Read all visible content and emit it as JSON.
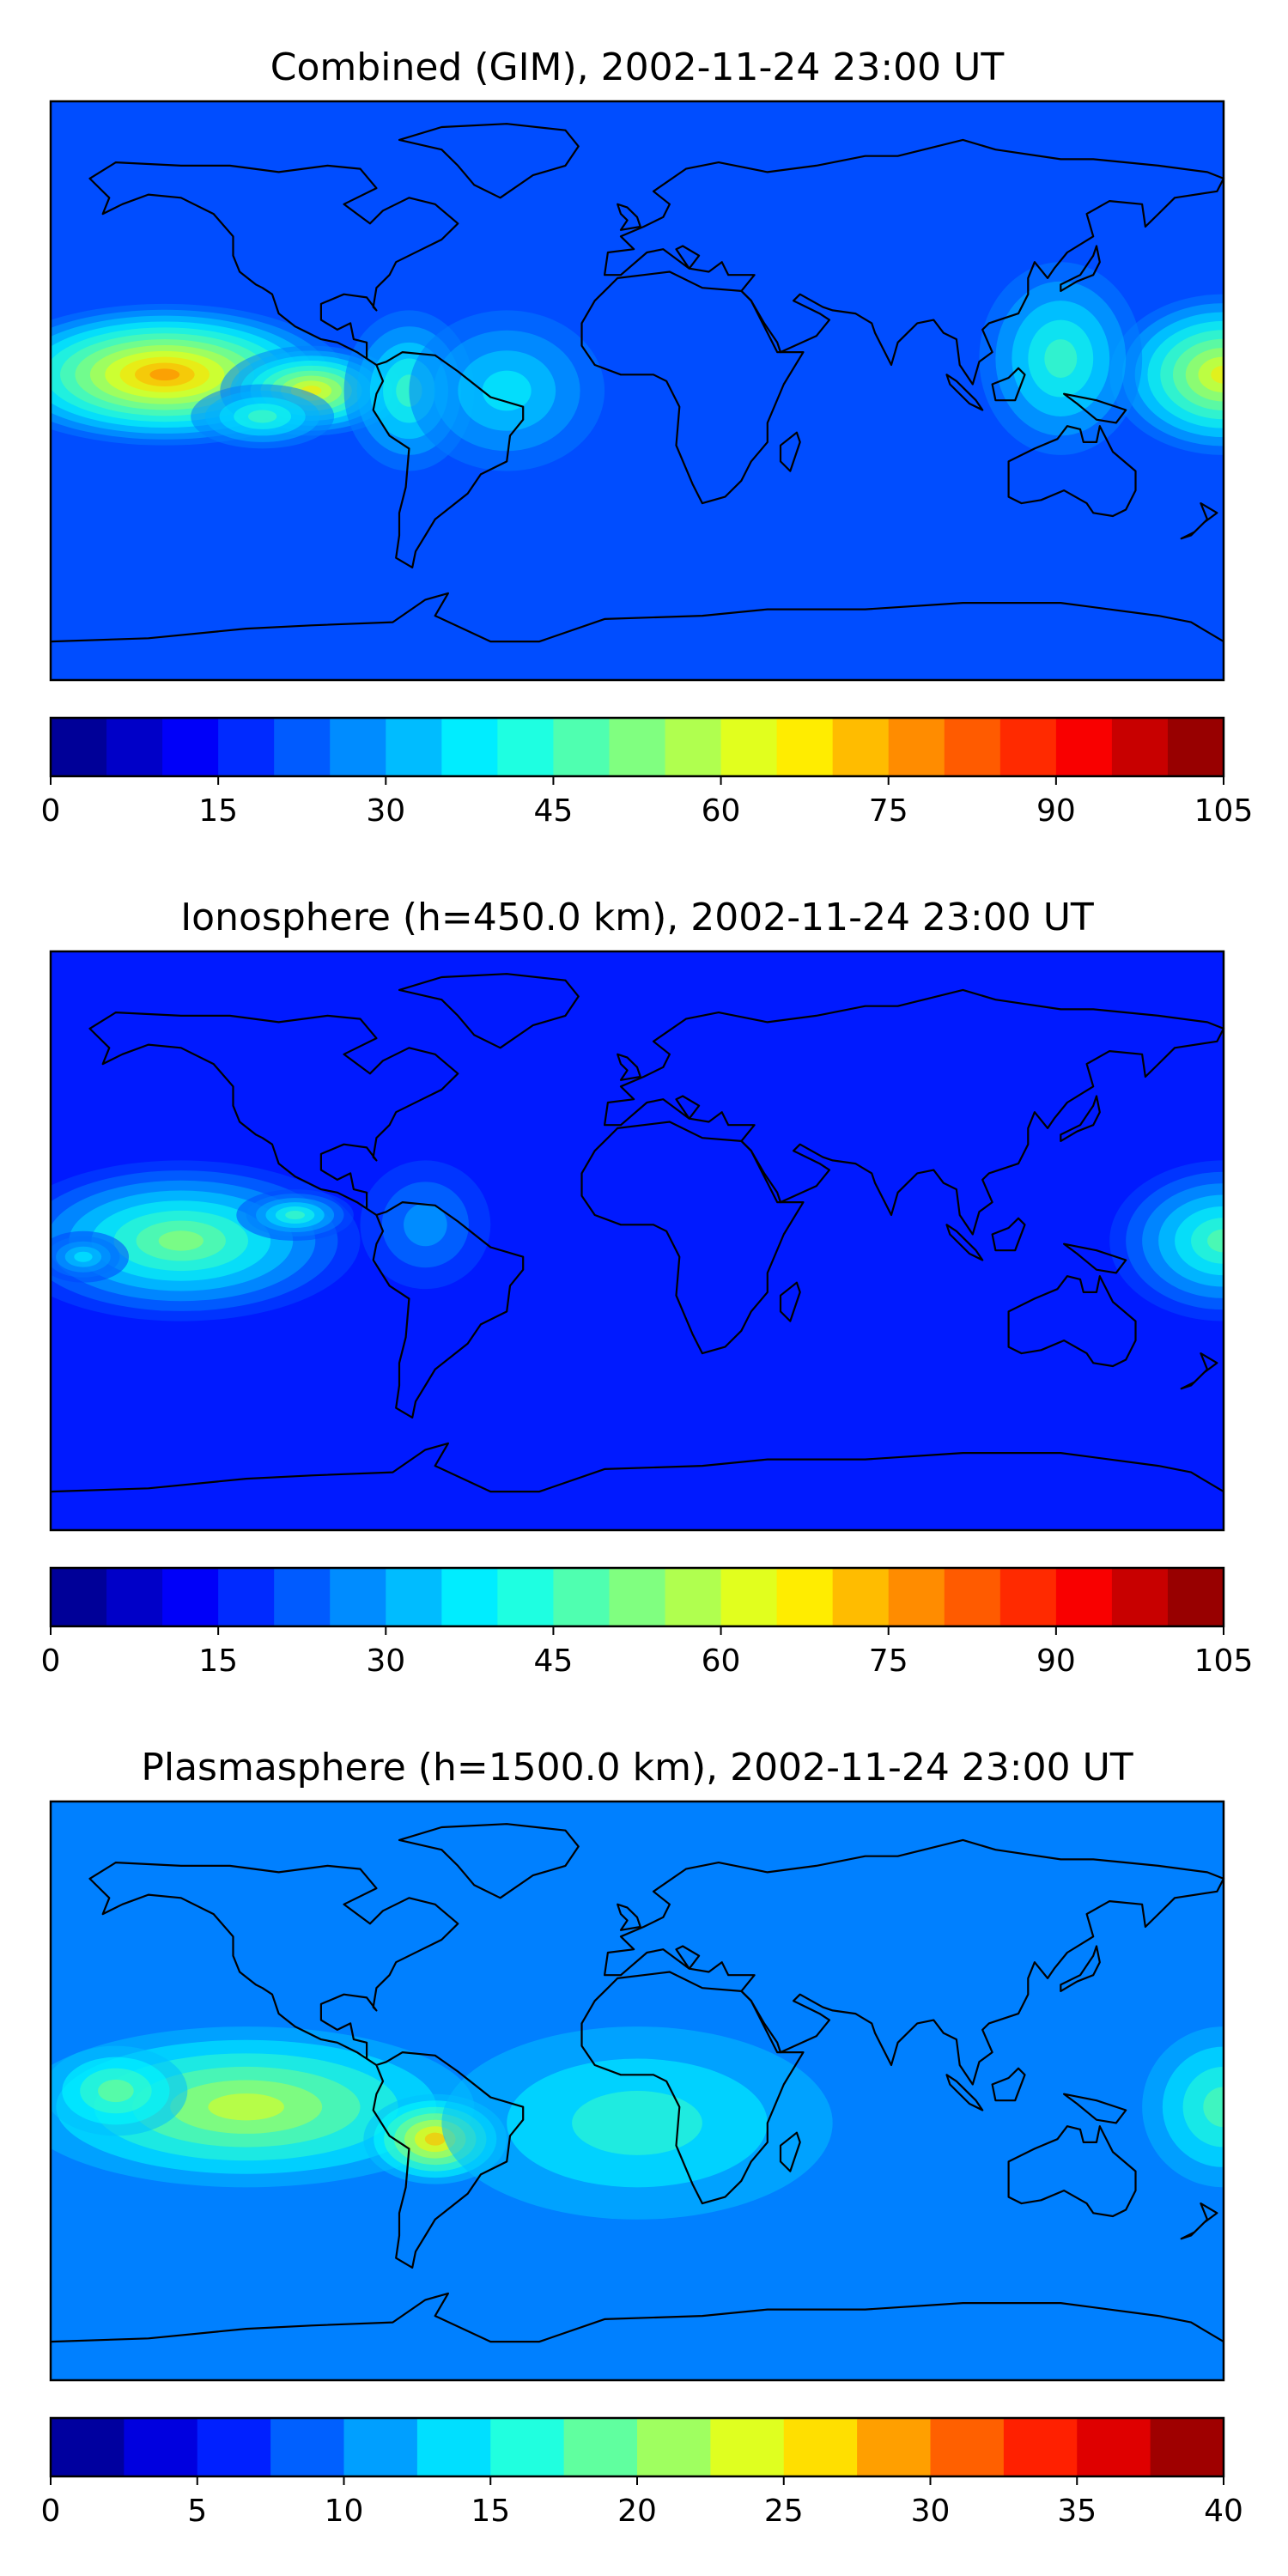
{
  "panels": [
    {
      "title": "Combined (GIM), 2002-11-24 23:00 UT",
      "colorbar": {
        "min": 0,
        "max": 105,
        "n_levels": 21,
        "ticks": [
          "0",
          "15",
          "30",
          "45",
          "60",
          "75",
          "90",
          "105"
        ]
      },
      "blobs": [
        {
          "lon": -145,
          "lat": 5,
          "rx": 55,
          "ry": 22,
          "amp": 0.55
        },
        {
          "lon": -100,
          "lat": 0,
          "rx": 28,
          "ry": 14,
          "amp": 0.45
        },
        {
          "lon": -115,
          "lat": -8,
          "rx": 22,
          "ry": 10,
          "amp": 0.25
        },
        {
          "lon": -70,
          "lat": 0,
          "rx": 20,
          "ry": 25,
          "amp": 0.25
        },
        {
          "lon": 180,
          "lat": 5,
          "rx": 35,
          "ry": 25,
          "amp": 0.45
        },
        {
          "lon": 130,
          "lat": 10,
          "rx": 25,
          "ry": 30,
          "amp": 0.25
        },
        {
          "lon": -40,
          "lat": 0,
          "rx": 30,
          "ry": 25,
          "amp": 0.18
        }
      ],
      "base": 0.2
    },
    {
      "title": "Ionosphere  (h=450.0 km), 2002-11-24 23:00 UT",
      "colorbar": {
        "min": 0,
        "max": 105,
        "n_levels": 21,
        "ticks": [
          "0",
          "15",
          "30",
          "45",
          "60",
          "75",
          "90",
          "105"
        ]
      },
      "blobs": [
        {
          "lon": -140,
          "lat": 0,
          "rx": 55,
          "ry": 25,
          "amp": 0.38
        },
        {
          "lon": -105,
          "lat": 8,
          "rx": 18,
          "ry": 8,
          "amp": 0.3
        },
        {
          "lon": -170,
          "lat": -5,
          "rx": 14,
          "ry": 8,
          "amp": 0.22
        },
        {
          "lon": 180,
          "lat": 0,
          "rx": 35,
          "ry": 25,
          "amp": 0.33
        },
        {
          "lon": -65,
          "lat": 5,
          "rx": 20,
          "ry": 20,
          "amp": 0.15
        }
      ],
      "base": 0.15
    },
    {
      "title": "Plasmasphere (h=1500.0 km), 2002-11-24 23:00 UT",
      "colorbar": {
        "min": 0,
        "max": 40,
        "n_levels": 16,
        "ticks": [
          "0",
          "5",
          "10",
          "15",
          "20",
          "25",
          "30",
          "35",
          "40"
        ]
      },
      "blobs": [
        {
          "lon": -120,
          "lat": -5,
          "rx": 70,
          "ry": 25,
          "amp": 0.35
        },
        {
          "lon": -62,
          "lat": -15,
          "rx": 22,
          "ry": 14,
          "amp": 0.45
        },
        {
          "lon": -160,
          "lat": 0,
          "rx": 22,
          "ry": 14,
          "amp": 0.25
        },
        {
          "lon": 0,
          "lat": -10,
          "rx": 60,
          "ry": 30,
          "amp": 0.18
        },
        {
          "lon": 180,
          "lat": -5,
          "rx": 25,
          "ry": 25,
          "amp": 0.22
        }
      ],
      "base": 0.25
    }
  ],
  "coastlines": [
    {
      "name": "north-america",
      "points": [
        [
          -168,
          66
        ],
        [
          -160,
          71
        ],
        [
          -140,
          70
        ],
        [
          -125,
          70
        ],
        [
          -110,
          68
        ],
        [
          -95,
          70
        ],
        [
          -85,
          69
        ],
        [
          -80,
          63
        ],
        [
          -90,
          58
        ],
        [
          -82,
          52
        ],
        [
          -78,
          56
        ],
        [
          -70,
          60
        ],
        [
          -62,
          58
        ],
        [
          -55,
          52
        ],
        [
          -60,
          47
        ],
        [
          -66,
          44
        ],
        [
          -70,
          42
        ],
        [
          -74,
          40
        ],
        [
          -76,
          36
        ],
        [
          -80,
          32
        ],
        [
          -81,
          26
        ],
        [
          -80,
          25
        ],
        [
          -83,
          29
        ],
        [
          -90,
          30
        ],
        [
          -97,
          27
        ],
        [
          -97,
          22
        ],
        [
          -92,
          19
        ],
        [
          -88,
          21
        ],
        [
          -87,
          16
        ],
        [
          -83,
          15
        ],
        [
          -83,
          10
        ],
        [
          -80,
          8
        ],
        [
          -86,
          12
        ],
        [
          -92,
          15
        ],
        [
          -97,
          16
        ],
        [
          -105,
          20
        ],
        [
          -110,
          24
        ],
        [
          -112,
          30
        ],
        [
          -115,
          32
        ],
        [
          -117,
          33
        ],
        [
          -122,
          37
        ],
        [
          -124,
          42
        ],
        [
          -124,
          48
        ],
        [
          -130,
          55
        ],
        [
          -140,
          60
        ],
        [
          -150,
          61
        ],
        [
          -158,
          58
        ],
        [
          -164,
          55
        ],
        [
          -162,
          60
        ],
        [
          -166,
          64
        ],
        [
          -168,
          66
        ]
      ]
    },
    {
      "name": "south-america",
      "points": [
        [
          -80,
          8
        ],
        [
          -77,
          9
        ],
        [
          -72,
          12
        ],
        [
          -62,
          11
        ],
        [
          -55,
          6
        ],
        [
          -50,
          2
        ],
        [
          -45,
          -2
        ],
        [
          -35,
          -5
        ],
        [
          -35,
          -9
        ],
        [
          -39,
          -14
        ],
        [
          -40,
          -22
        ],
        [
          -48,
          -26
        ],
        [
          -52,
          -32
        ],
        [
          -57,
          -36
        ],
        [
          -62,
          -40
        ],
        [
          -65,
          -45
        ],
        [
          -68,
          -50
        ],
        [
          -69,
          -55
        ],
        [
          -74,
          -52
        ],
        [
          -73,
          -45
        ],
        [
          -73,
          -38
        ],
        [
          -71,
          -30
        ],
        [
          -70,
          -18
        ],
        [
          -76,
          -14
        ],
        [
          -81,
          -6
        ],
        [
          -80,
          -1
        ],
        [
          -78,
          3
        ],
        [
          -80,
          8
        ]
      ]
    },
    {
      "name": "greenland",
      "points": [
        [
          -73,
          78
        ],
        [
          -60,
          82
        ],
        [
          -40,
          83
        ],
        [
          -22,
          81
        ],
        [
          -18,
          76
        ],
        [
          -22,
          70
        ],
        [
          -32,
          67
        ],
        [
          -42,
          60
        ],
        [
          -50,
          64
        ],
        [
          -55,
          70
        ],
        [
          -60,
          75
        ],
        [
          -73,
          78
        ]
      ]
    },
    {
      "name": "africa",
      "points": [
        [
          -17,
          21
        ],
        [
          -13,
          28
        ],
        [
          -9,
          32
        ],
        [
          -6,
          35
        ],
        [
          10,
          37
        ],
        [
          20,
          32
        ],
        [
          32,
          31
        ],
        [
          35,
          28
        ],
        [
          43,
          12
        ],
        [
          51,
          12
        ],
        [
          45,
          2
        ],
        [
          40,
          -10
        ],
        [
          40,
          -16
        ],
        [
          35,
          -22
        ],
        [
          32,
          -28
        ],
        [
          27,
          -33
        ],
        [
          20,
          -35
        ],
        [
          17,
          -29
        ],
        [
          12,
          -17
        ],
        [
          13,
          -5
        ],
        [
          9,
          3
        ],
        [
          5,
          5
        ],
        [
          -5,
          5
        ],
        [
          -13,
          8
        ],
        [
          -17,
          14
        ],
        [
          -17,
          21
        ]
      ]
    },
    {
      "name": "madagascar",
      "points": [
        [
          44,
          -17
        ],
        [
          49,
          -13
        ],
        [
          50,
          -16
        ],
        [
          47,
          -25
        ],
        [
          44,
          -22
        ],
        [
          44,
          -17
        ]
      ]
    },
    {
      "name": "eurasia",
      "points": [
        [
          -10,
          36
        ],
        [
          -9,
          43
        ],
        [
          -1,
          44
        ],
        [
          -5,
          48
        ],
        [
          2,
          51
        ],
        [
          8,
          54
        ],
        [
          10,
          58
        ],
        [
          5,
          62
        ],
        [
          15,
          69
        ],
        [
          25,
          71
        ],
        [
          40,
          68
        ],
        [
          55,
          70
        ],
        [
          70,
          73
        ],
        [
          80,
          73
        ],
        [
          100,
          78
        ],
        [
          110,
          75
        ],
        [
          130,
          72
        ],
        [
          140,
          72
        ],
        [
          160,
          70
        ],
        [
          175,
          68
        ],
        [
          180,
          66
        ],
        [
          178,
          62
        ],
        [
          165,
          60
        ],
        [
          160,
          55
        ],
        [
          156,
          51
        ],
        [
          155,
          58
        ],
        [
          145,
          59
        ],
        [
          138,
          55
        ],
        [
          140,
          48
        ],
        [
          132,
          43
        ],
        [
          128,
          38
        ],
        [
          126,
          35
        ],
        [
          122,
          40
        ],
        [
          120,
          35
        ],
        [
          120,
          30
        ],
        [
          117,
          24
        ],
        [
          108,
          21
        ],
        [
          106,
          19
        ],
        [
          109,
          12
        ],
        [
          105,
          9
        ],
        [
          103,
          2
        ],
        [
          99,
          8
        ],
        [
          98,
          16
        ],
        [
          94,
          18
        ],
        [
          91,
          22
        ],
        [
          86,
          21
        ],
        [
          80,
          15
        ],
        [
          78,
          8
        ],
        [
          73,
          18
        ],
        [
          72,
          21
        ],
        [
          67,
          24
        ],
        [
          60,
          25
        ],
        [
          57,
          26
        ],
        [
          50,
          30
        ],
        [
          48,
          28
        ],
        [
          56,
          24
        ],
        [
          59,
          22
        ],
        [
          55,
          17
        ],
        [
          44,
          12
        ],
        [
          43,
          15
        ],
        [
          39,
          21
        ],
        [
          35,
          28
        ],
        [
          32,
          31
        ],
        [
          36,
          36
        ],
        [
          28,
          36
        ],
        [
          26,
          40
        ],
        [
          22,
          37
        ],
        [
          16,
          38
        ],
        [
          19,
          42
        ],
        [
          14,
          45
        ],
        [
          12,
          44
        ],
        [
          16,
          38
        ],
        [
          8,
          44
        ],
        [
          3,
          43
        ],
        [
          -5,
          36
        ],
        [
          -10,
          36
        ]
      ]
    },
    {
      "name": "uk",
      "points": [
        [
          -5,
          50
        ],
        [
          1,
          51
        ],
        [
          0,
          54
        ],
        [
          -3,
          57
        ],
        [
          -6,
          58
        ],
        [
          -5,
          55
        ],
        [
          -3,
          53
        ],
        [
          -5,
          50
        ]
      ]
    },
    {
      "name": "japan",
      "points": [
        [
          130,
          31
        ],
        [
          135,
          34
        ],
        [
          140,
          36
        ],
        [
          142,
          40
        ],
        [
          141,
          45
        ],
        [
          140,
          42
        ],
        [
          136,
          36
        ],
        [
          130,
          33
        ],
        [
          130,
          31
        ]
      ]
    },
    {
      "name": "sumatra",
      "points": [
        [
          95,
          5
        ],
        [
          98,
          3
        ],
        [
          104,
          -3
        ],
        [
          106,
          -6
        ],
        [
          102,
          -4
        ],
        [
          96,
          2
        ],
        [
          95,
          5
        ]
      ]
    },
    {
      "name": "borneo",
      "points": [
        [
          109,
          2
        ],
        [
          114,
          4
        ],
        [
          117,
          7
        ],
        [
          119,
          5
        ],
        [
          116,
          -3
        ],
        [
          110,
          -3
        ],
        [
          109,
          2
        ]
      ]
    },
    {
      "name": "new-guinea",
      "points": [
        [
          131,
          -1
        ],
        [
          141,
          -3
        ],
        [
          150,
          -6
        ],
        [
          147,
          -10
        ],
        [
          141,
          -9
        ],
        [
          135,
          -4
        ],
        [
          131,
          -1
        ]
      ]
    },
    {
      "name": "australia",
      "points": [
        [
          114,
          -22
        ],
        [
          114,
          -33
        ],
        [
          118,
          -35
        ],
        [
          124,
          -34
        ],
        [
          131,
          -31
        ],
        [
          138,
          -35
        ],
        [
          140,
          -38
        ],
        [
          146,
          -39
        ],
        [
          150,
          -37
        ],
        [
          153,
          -31
        ],
        [
          153,
          -25
        ],
        [
          146,
          -19
        ],
        [
          142,
          -11
        ],
        [
          141,
          -16
        ],
        [
          137,
          -16
        ],
        [
          136,
          -12
        ],
        [
          132,
          -11
        ],
        [
          129,
          -15
        ],
        [
          122,
          -18
        ],
        [
          114,
          -22
        ]
      ]
    },
    {
      "name": "new-zealand",
      "points": [
        [
          167,
          -46
        ],
        [
          171,
          -44
        ],
        [
          174,
          -41
        ],
        [
          178,
          -38
        ],
        [
          173,
          -35
        ],
        [
          175,
          -40
        ],
        [
          170,
          -45
        ],
        [
          167,
          -46
        ]
      ]
    },
    {
      "name": "antarctica",
      "points": [
        [
          -180,
          -78
        ],
        [
          -150,
          -77
        ],
        [
          -120,
          -74
        ],
        [
          -100,
          -73
        ],
        [
          -75,
          -72
        ],
        [
          -65,
          -65
        ],
        [
          -58,
          -63
        ],
        [
          -62,
          -70
        ],
        [
          -45,
          -78
        ],
        [
          -30,
          -78
        ],
        [
          -10,
          -71
        ],
        [
          20,
          -70
        ],
        [
          40,
          -68
        ],
        [
          70,
          -68
        ],
        [
          100,
          -66
        ],
        [
          130,
          -66
        ],
        [
          160,
          -70
        ],
        [
          170,
          -72
        ],
        [
          180,
          -78
        ]
      ]
    }
  ]
}
